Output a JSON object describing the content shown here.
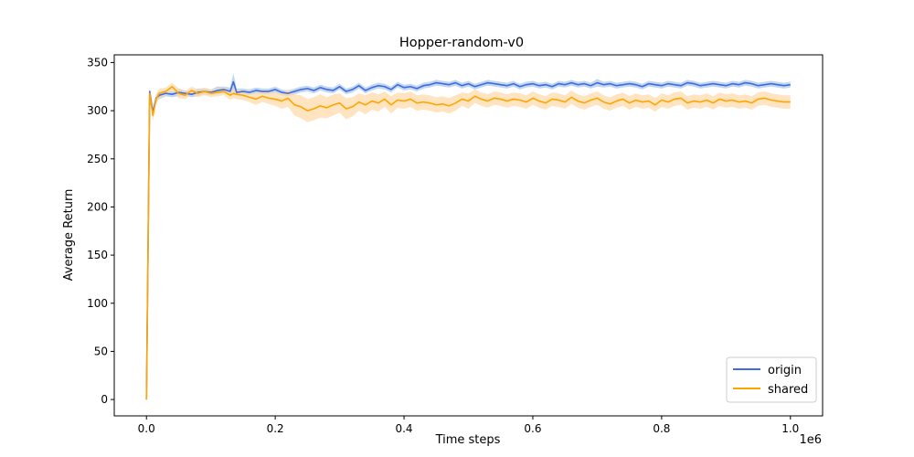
{
  "chart_data": {
    "type": "line",
    "title": "Hopper-random-v0",
    "xlabel": "Time steps",
    "ylabel": "Average Return",
    "x_scale_label": "1e6",
    "xlim": [
      -0.05,
      1.05
    ],
    "ylim": [
      -17,
      358
    ],
    "xticks": [
      0.0,
      0.2,
      0.4,
      0.6,
      0.8,
      1.0
    ],
    "xtick_labels": [
      "0.0",
      "0.2",
      "0.4",
      "0.6",
      "0.8",
      "1.0"
    ],
    "yticks": [
      0,
      50,
      100,
      150,
      200,
      250,
      300,
      350
    ],
    "ytick_labels": [
      "0",
      "50",
      "100",
      "150",
      "200",
      "250",
      "300",
      "350"
    ],
    "grid": false,
    "legend_position": "bottom-right",
    "x": [
      0.0,
      0.005,
      0.01,
      0.015,
      0.02,
      0.03,
      0.04,
      0.05,
      0.06,
      0.07,
      0.08,
      0.09,
      0.1,
      0.11,
      0.12,
      0.13,
      0.135,
      0.14,
      0.15,
      0.16,
      0.17,
      0.18,
      0.19,
      0.2,
      0.21,
      0.22,
      0.23,
      0.24,
      0.25,
      0.26,
      0.27,
      0.28,
      0.29,
      0.3,
      0.31,
      0.32,
      0.33,
      0.34,
      0.35,
      0.36,
      0.37,
      0.38,
      0.39,
      0.4,
      0.41,
      0.42,
      0.43,
      0.44,
      0.45,
      0.46,
      0.47,
      0.48,
      0.49,
      0.5,
      0.51,
      0.52,
      0.53,
      0.54,
      0.55,
      0.56,
      0.57,
      0.58,
      0.59,
      0.6,
      0.61,
      0.62,
      0.63,
      0.64,
      0.65,
      0.66,
      0.67,
      0.68,
      0.69,
      0.7,
      0.71,
      0.72,
      0.73,
      0.74,
      0.75,
      0.76,
      0.77,
      0.78,
      0.79,
      0.8,
      0.81,
      0.82,
      0.83,
      0.84,
      0.85,
      0.86,
      0.87,
      0.88,
      0.89,
      0.9,
      0.91,
      0.92,
      0.93,
      0.94,
      0.95,
      0.96,
      0.97,
      0.98,
      0.99,
      1.0
    ],
    "series": [
      {
        "name": "origin",
        "color": "#4169e1",
        "band_color": "#a6c8e8",
        "values": [
          0,
          320,
          298,
          313,
          316,
          318,
          317,
          319,
          318,
          317,
          319,
          320,
          319,
          321,
          322,
          320,
          330,
          319,
          320,
          319,
          321,
          320,
          320,
          322,
          319,
          318,
          320,
          322,
          323,
          321,
          324,
          322,
          321,
          325,
          320,
          322,
          326,
          321,
          324,
          326,
          325,
          322,
          327,
          324,
          325,
          323,
          326,
          327,
          329,
          328,
          327,
          329,
          326,
          328,
          325,
          327,
          329,
          328,
          327,
          326,
          328,
          325,
          327,
          328,
          326,
          327,
          325,
          328,
          327,
          329,
          327,
          328,
          326,
          329,
          327,
          328,
          326,
          327,
          328,
          327,
          325,
          328,
          327,
          326,
          328,
          327,
          326,
          329,
          328,
          326,
          327,
          328,
          327,
          326,
          328,
          327,
          329,
          328,
          326,
          327,
          328,
          327,
          326,
          327
        ],
        "spread": [
          0,
          4,
          5,
          4,
          4,
          3,
          3,
          4,
          3,
          3,
          4,
          3,
          3,
          4,
          3,
          4,
          9,
          4,
          3,
          3,
          3,
          3,
          3,
          3,
          3,
          3,
          3,
          3,
          3,
          3,
          3,
          3,
          3,
          3,
          3,
          3,
          3,
          3,
          3,
          3,
          3,
          3,
          3,
          3,
          3,
          3,
          3,
          3,
          3,
          3,
          3,
          3,
          3,
          3,
          3,
          3,
          3,
          3,
          3,
          3,
          3,
          3,
          3,
          3,
          3,
          3,
          3,
          3,
          3,
          3,
          3,
          3,
          3,
          4,
          3,
          3,
          3,
          3,
          3,
          3,
          3,
          3,
          3,
          3,
          3,
          3,
          3,
          3,
          3,
          3,
          3,
          3,
          3,
          3,
          3,
          3,
          3,
          3,
          3,
          3,
          3,
          3,
          3,
          3
        ]
      },
      {
        "name": "shared",
        "color": "#ffa500",
        "band_color": "#ffd9a6",
        "values": [
          0,
          318,
          295,
          312,
          318,
          320,
          325,
          318,
          316,
          321,
          318,
          320,
          318,
          319,
          320,
          316,
          318,
          317,
          316,
          314,
          312,
          315,
          313,
          312,
          310,
          313,
          306,
          304,
          300,
          302,
          305,
          303,
          306,
          308,
          302,
          304,
          309,
          306,
          310,
          308,
          312,
          306,
          311,
          310,
          312,
          308,
          309,
          308,
          306,
          307,
          305,
          308,
          312,
          310,
          315,
          312,
          310,
          313,
          312,
          310,
          312,
          311,
          309,
          313,
          310,
          308,
          312,
          311,
          309,
          314,
          310,
          308,
          311,
          313,
          309,
          307,
          310,
          312,
          308,
          311,
          309,
          310,
          306,
          311,
          309,
          312,
          313,
          308,
          310,
          309,
          311,
          308,
          312,
          310,
          311,
          309,
          310,
          308,
          312,
          313,
          311,
          310,
          309,
          309
        ],
        "spread": [
          0,
          5,
          6,
          5,
          5,
          4,
          4,
          5,
          4,
          4,
          4,
          4,
          4,
          4,
          4,
          5,
          5,
          5,
          5,
          5,
          6,
          6,
          6,
          7,
          8,
          9,
          11,
          12,
          12,
          12,
          12,
          11,
          11,
          10,
          11,
          10,
          9,
          10,
          9,
          9,
          8,
          9,
          8,
          8,
          8,
          8,
          8,
          8,
          8,
          8,
          8,
          8,
          7,
          8,
          7,
          7,
          7,
          7,
          7,
          7,
          7,
          7,
          7,
          7,
          7,
          7,
          7,
          7,
          7,
          7,
          7,
          7,
          7,
          7,
          7,
          7,
          7,
          7,
          7,
          7,
          7,
          7,
          7,
          7,
          7,
          7,
          7,
          7,
          7,
          7,
          7,
          7,
          7,
          7,
          7,
          7,
          7,
          7,
          7,
          7,
          7,
          7,
          7,
          7
        ]
      }
    ]
  }
}
